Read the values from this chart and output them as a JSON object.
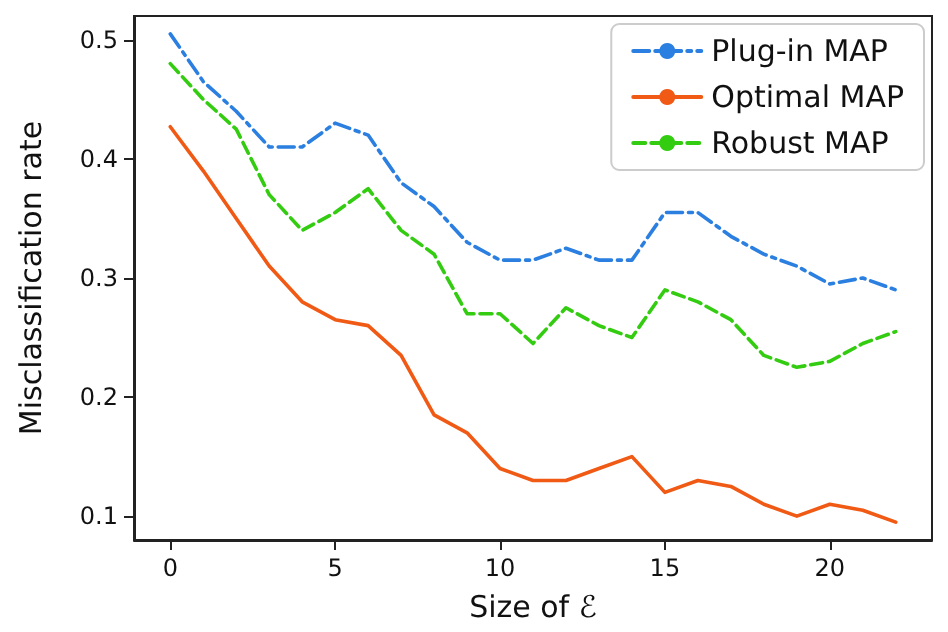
{
  "chart_data": {
    "type": "line",
    "xlabel": "Size of ℰ",
    "ylabel": "Misclassification rate",
    "x": [
      0,
      1,
      2,
      3,
      4,
      5,
      6,
      7,
      8,
      9,
      10,
      11,
      12,
      13,
      14,
      15,
      16,
      17,
      18,
      19,
      20,
      21,
      22
    ],
    "series": [
      {
        "name": "Plug-in MAP",
        "color": "#2a7fe0",
        "line_style": "dashdot",
        "values": [
          0.505,
          0.465,
          0.44,
          0.41,
          0.41,
          0.43,
          0.42,
          0.38,
          0.36,
          0.33,
          0.315,
          0.315,
          0.325,
          0.315,
          0.315,
          0.355,
          0.355,
          0.335,
          0.32,
          0.31,
          0.295,
          0.3,
          0.29
        ]
      },
      {
        "name": "Optimal MAP",
        "color": "#f05a14",
        "line_style": "solid",
        "values": [
          0.427,
          0.39,
          0.35,
          0.31,
          0.28,
          0.265,
          0.26,
          0.235,
          0.185,
          0.17,
          0.14,
          0.13,
          0.13,
          0.14,
          0.15,
          0.12,
          0.13,
          0.125,
          0.11,
          0.1,
          0.11,
          0.105,
          0.095
        ]
      },
      {
        "name": "Robust MAP",
        "color": "#33cc11",
        "line_style": "dashed",
        "values": [
          0.48,
          0.45,
          0.425,
          0.37,
          0.34,
          0.355,
          0.375,
          0.34,
          0.32,
          0.27,
          0.27,
          0.245,
          0.275,
          0.26,
          0.25,
          0.29,
          0.28,
          0.265,
          0.235,
          0.225,
          0.23,
          0.245,
          0.255
        ]
      }
    ],
    "xlim": [
      -1.1,
      23.1
    ],
    "xticks": [
      0,
      5,
      10,
      15,
      20
    ],
    "ylim": [
      0.08,
      0.52
    ],
    "yticks": [
      0.1,
      0.2,
      0.3,
      0.4,
      0.5
    ],
    "grid": false,
    "legend": "top right",
    "marker": "none"
  }
}
